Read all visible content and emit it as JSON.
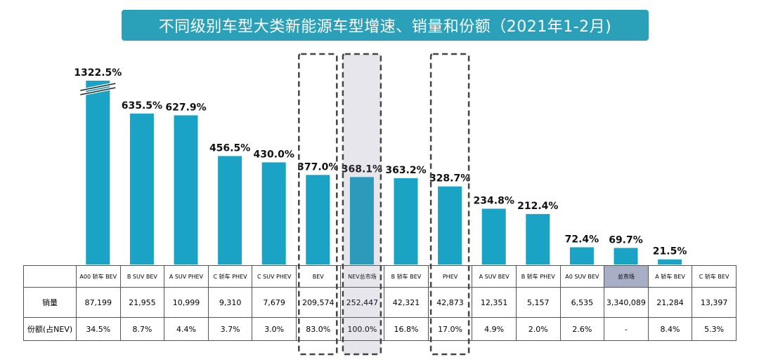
{
  "title": "不同级别车型大类新能源车型增速、销量和份额（2021年1-2月)",
  "table": {
    "row_labels": {
      "sales": "销量",
      "share": "份额(占NEV)"
    }
  },
  "chart_data": {
    "type": "bar",
    "title": "不同级别车型大类新能源车型增速、销量和份额（2021年1-2月)",
    "categories": [
      "A00 轿车 BEV",
      "B SUV BEV",
      "A SUV PHEV",
      "C 轿车 PHEV",
      "C SUV PHEV",
      "BEV",
      "NEV总市场",
      "B 轿车 BEV",
      "PHEV",
      "A SUV BEV",
      "B 轿车 PHEV",
      "A0 SUV BEV",
      "总市场",
      "A 轿车 BEV",
      "C 轿车 BEV"
    ],
    "values": [
      1322.5,
      635.5,
      627.9,
      456.5,
      430.0,
      377.0,
      368.1,
      363.2,
      328.7,
      234.8,
      212.4,
      72.4,
      69.7,
      21.5,
      null
    ],
    "value_labels": [
      "1322.5%",
      "635.5%",
      "627.9%",
      "456.5%",
      "430.0%",
      "377.0%",
      "368.1%",
      "363.2%",
      "328.7%",
      "234.8%",
      "212.4%",
      "72.4%",
      "69.7%",
      "21.5%",
      ""
    ],
    "axis_break_on": "A00 轿车 BEV",
    "sales": [
      "87,199",
      "21,955",
      "10,999",
      "9,310",
      "7,679",
      "209,574",
      "252,447",
      "42,321",
      "42,873",
      "12,351",
      "5,157",
      "6,535",
      "3,340,089",
      "21,284",
      "13,397"
    ],
    "share": [
      "34.5%",
      "8.7%",
      "4.4%",
      "3.7%",
      "3.0%",
      "83.0%",
      "100.0%",
      "16.8%",
      "17.0%",
      "4.9%",
      "2.0%",
      "2.6%",
      "-",
      "8.4%",
      "5.3%"
    ],
    "highlighted": [
      "BEV",
      "NEV总市场",
      "PHEV"
    ],
    "highlighted_total": "总市场",
    "bar_color": "#1aa3c4",
    "ylabel": "",
    "xlabel": ""
  }
}
